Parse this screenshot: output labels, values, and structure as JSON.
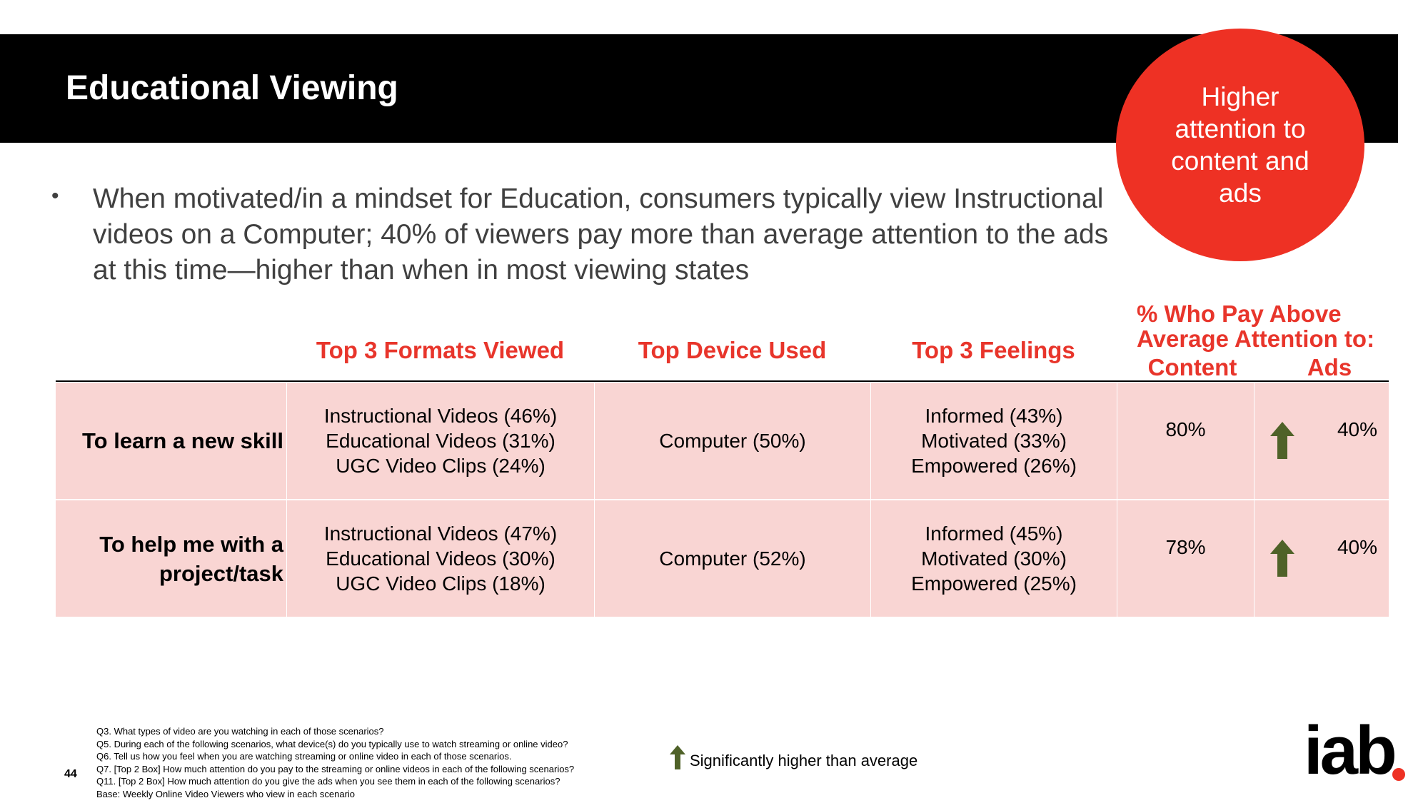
{
  "header": {
    "title": "Educational Viewing"
  },
  "callout": "Higher attention to content and ads",
  "bullet": "When motivated/in a mindset for Education, consumers typically view Instructional videos on a Computer; 40% of viewers pay more than average attention to the ads at this time—higher than when in most viewing states",
  "table": {
    "headers": [
      "Top 3 Formats Viewed",
      "Top Device Used",
      "Top 3 Feelings"
    ],
    "attention_header": "% Who Pay Above Average Attention to:",
    "attention_columns": [
      "Content",
      "Ads"
    ],
    "rows": [
      {
        "label": "To learn a new skill",
        "formats": [
          "Instructional Videos (46%)",
          "Educational Videos (31%)",
          "UGC Video Clips (24%)"
        ],
        "device": "Computer (50%)",
        "feelings": [
          "Informed (43%)",
          "Motivated (33%)",
          "Empowered (26%)"
        ],
        "content": "80%",
        "ads": "40%"
      },
      {
        "label": "To help me with a project/task",
        "formats": [
          "Instructional Videos (47%)",
          "Educational Videos (30%)",
          "UGC Video Clips (18%)"
        ],
        "device": "Computer (52%)",
        "feelings": [
          "Informed (45%)",
          "Motivated (30%)",
          "Empowered (25%)"
        ],
        "content": "78%",
        "ads": "40%"
      }
    ]
  },
  "legend": "Significantly higher than average",
  "footnotes": [
    "Q3. What types of video are you watching in each of those scenarios?",
    "Q5. During each of the following scenarios, what device(s) do you typically use to watch streaming or online video?",
    "Q6. Tell us how you feel when you are watching streaming or online video in each of those scenarios.",
    "Q7. [Top 2 Box] How much attention do you pay to the streaming or online videos in each of the following scenarios?",
    "Q11. [Top 2 Box] How much attention do you give the ads when you see them in each of the following scenarios?",
    "Base: Weekly Online Video Viewers who view in each scenario"
  ],
  "page_number": "44",
  "logo": "iab"
}
